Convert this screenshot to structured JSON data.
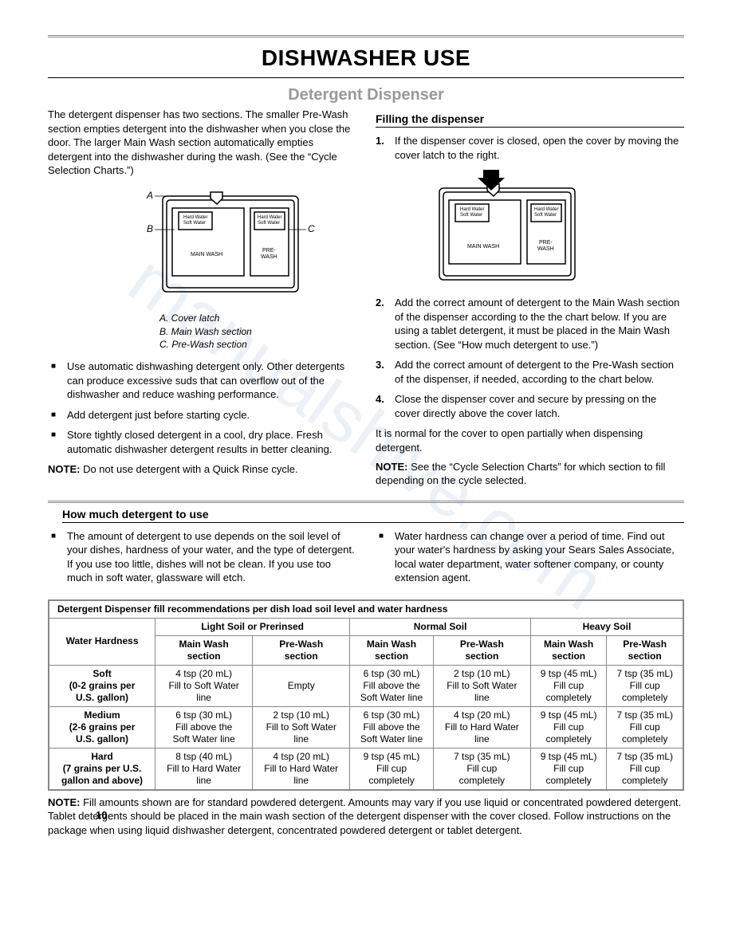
{
  "page": {
    "title": "DISHWASHER USE",
    "subtitle": "Detergent Dispenser",
    "page_number": "10",
    "watermark": "manualshive.com"
  },
  "intro": "The detergent dispenser has two sections. The smaller Pre-Wash section empties detergent into the dishwasher when you close the door. The larger Main Wash section automatically empties detergent into the dishwasher during the wash. (See the “Cycle Selection Charts.”)",
  "diagram_left": {
    "label_A": "A",
    "label_B": "B",
    "label_C": "C",
    "box1_line1": "Hard Water",
    "box1_line2": "Soft Water",
    "box2_line1": "Hard Water",
    "box2_line2": "Soft Water",
    "main_wash": "MAIN WASH",
    "pre_wash_line1": "PRE-",
    "pre_wash_line2": "WASH",
    "legend_A": "A. Cover latch",
    "legend_B": "B. Main Wash section",
    "legend_C": "C. Pre-Wash section"
  },
  "diagram_right": {
    "box1_line1": "Hard Water",
    "box1_line2": "Soft Water",
    "box2_line1": "Hard Water",
    "box2_line2": "Soft Water",
    "main_wash": "MAIN WASH",
    "pre_wash_line1": "PRE-",
    "pre_wash_line2": "WASH"
  },
  "left_bullets": [
    "Use automatic dishwashing detergent only. Other detergents can produce excessive suds that can overflow out of the dishwasher and reduce washing performance.",
    "Add detergent just before starting cycle.",
    "Store tightly closed detergent in a cool, dry place. Fresh automatic dishwasher detergent results in better cleaning."
  ],
  "left_note": {
    "label": "NOTE:",
    "text": " Do not use detergent with a Quick Rinse cycle."
  },
  "filling_header": "Filling the dispenser",
  "filling_steps": [
    "If the dispenser cover is closed, open the cover by moving the cover latch to the right.",
    "Add the correct amount of detergent to the Main Wash section of the dispenser according to the the chart below. If you are using a tablet detergent, it must be placed in the Main Wash section. (See “How much detergent to use.”)",
    "Add the correct amount of detergent to the Pre-Wash section of the dispenser, if needed, according to the chart below.",
    "Close the dispenser cover and secure by pressing on the cover directly above the cover latch."
  ],
  "filling_tail": "It is normal for the cover to open partially when dispensing detergent.",
  "filling_note": {
    "label": "NOTE:",
    "text": " See the “Cycle Selection Charts” for which section to fill depending on the cycle selected."
  },
  "how_much_header": "How much detergent to use",
  "how_much_left": "The amount of detergent to use depends on the soil level of your dishes, hardness of your water, and the type of detergent. If you use too little, dishes will not be clean. If you use too much in soft water, glassware will etch.",
  "how_much_right": "Water hardness can change over a period of time. Find out your water's hardness by asking your Sears Sales Associate, local water department, water softener company, or county extension agent.",
  "table": {
    "title": "Detergent Dispenser fill recommendations per dish load soil level and water hardness",
    "col_hardness": "Water Hardness",
    "group_light": "Light Soil or Prerinsed",
    "group_normal": "Normal Soil",
    "group_heavy": "Heavy Soil",
    "sub_main": "Main Wash\nsection",
    "sub_pre": "Pre-Wash\nsection",
    "rows": [
      {
        "hardness": "Soft\n(0-2 grains per\nU.S. gallon)",
        "cells": [
          "4 tsp (20 mL)\nFill to Soft Water\nline",
          "Empty",
          "6 tsp (30 mL)\nFill above the\nSoft Water line",
          "2 tsp (10 mL)\nFill to Soft Water\nline",
          "9 tsp (45 mL)\nFill cup\ncompletely",
          "7 tsp (35 mL)\nFill cup\ncompletely"
        ]
      },
      {
        "hardness": "Medium\n(2-6 grains per\nU.S. gallon)",
        "cells": [
          "6 tsp (30 mL)\nFill above the\nSoft Water line",
          "2 tsp (10 mL)\nFill to Soft Water\nline",
          "6 tsp (30 mL)\nFill above the\nSoft Water line",
          "4 tsp (20 mL)\nFill to Hard Water\nline",
          "9 tsp (45 mL)\nFill cup\ncompletely",
          "7 tsp (35 mL)\nFill cup\ncompletely"
        ]
      },
      {
        "hardness": "Hard\n(7 grains per U.S.\ngallon and above)",
        "cells": [
          "8 tsp (40 mL)\nFill to Hard Water\nline",
          "4 tsp (20 mL)\nFill to Hard Water\nline",
          "9 tsp (45 mL)\nFill cup\ncompletely",
          "7 tsp (35 mL)\nFill cup\ncompletely",
          "9 tsp (45 mL)\nFill cup\ncompletely",
          "7 tsp (35 mL)\nFill cup\ncompletely"
        ]
      }
    ]
  },
  "footer_note": {
    "label": "NOTE:",
    "text": " Fill amounts shown are for standard powdered detergent. Amounts may vary if you use liquid or concentrated powdered detergent. Tablet detergents should be placed in the main wash section of the detergent dispenser with the cover closed. Follow instructions on the package when using liquid dishwasher detergent, concentrated powdered detergent or tablet detergent."
  }
}
